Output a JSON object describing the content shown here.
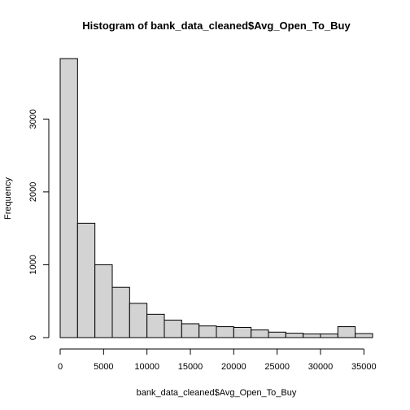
{
  "chart_data": {
    "type": "bar",
    "title": "Histogram of bank_data_cleaned$Avg_Open_To_Buy",
    "xlabel": "bank_data_cleaned$Avg_Open_To_Buy",
    "ylabel": "Frequency",
    "bin_edges": [
      0,
      2000,
      4000,
      6000,
      8000,
      10000,
      12000,
      14000,
      16000,
      18000,
      20000,
      22000,
      24000,
      26000,
      28000,
      30000,
      32000,
      34000,
      36000
    ],
    "values": [
      3830,
      1570,
      1000,
      690,
      470,
      320,
      240,
      190,
      160,
      150,
      140,
      105,
      75,
      60,
      50,
      50,
      150,
      55
    ],
    "xlim": [
      0,
      36000
    ],
    "ylim": [
      0,
      3830
    ],
    "x_ticks": [
      0,
      5000,
      10000,
      15000,
      20000,
      25000,
      30000,
      35000
    ],
    "y_ticks": [
      0,
      1000,
      2000,
      3000
    ],
    "grid": false,
    "colors": {
      "bar_fill": "#d3d3d3",
      "bar_stroke": "#000000"
    }
  }
}
